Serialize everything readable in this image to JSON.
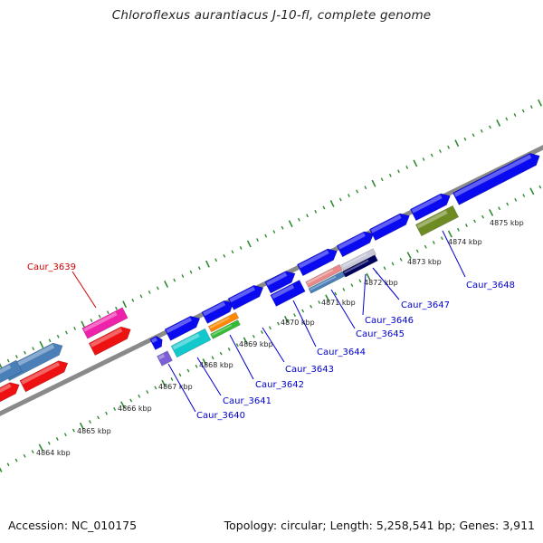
{
  "title": "Chloroflexus aurantiacus J-10-fl, complete genome",
  "footer": {
    "accession": "Accession: NC_010175",
    "summary": "Topology: circular; Length: 5,258,541 bp; Genes: 3,911"
  },
  "colors": {
    "backbone": "#8a8a8a",
    "tick": "#2e8b2e",
    "label": "#0000cc",
    "highlight_label": "#cc0000",
    "gene_blue": "#0a0af0",
    "gene_steel": "#4a7fb8",
    "gene_red": "#ee1111",
    "gene_pink": "#ee22aa",
    "gene_cyan": "#11c8cc",
    "gene_orange": "#ff8800",
    "gene_green": "#33bb33",
    "gene_olive": "#6e8a22",
    "gene_purple": "#7a5fd6",
    "gene_salmon": "#e88a8a",
    "gene_navy": "#00005e"
  },
  "kbp_ticks": [
    "4864 kbp",
    "4865 kbp",
    "4866 kbp",
    "4867 kbp",
    "4868 kbp",
    "4869 kbp",
    "4870 kbp",
    "4871 kbp",
    "4872 kbp",
    "4873 kbp",
    "4874 kbp",
    "4875 kbp"
  ],
  "gene_labels": [
    "Caur_3639",
    "Caur_3640",
    "Caur_3641",
    "Caur_3642",
    "Caur_3643",
    "Caur_3644",
    "Caur_3645",
    "Caur_3646",
    "Caur_3647",
    "Caur_3648"
  ]
}
